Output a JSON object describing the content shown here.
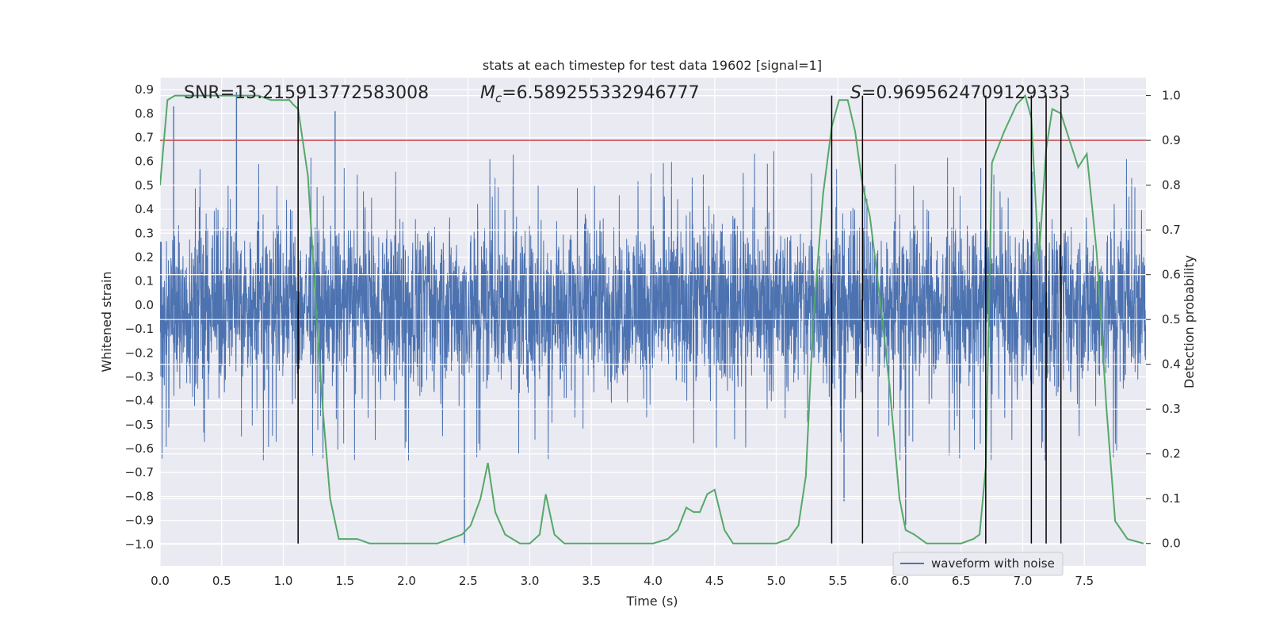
{
  "chart_data": {
    "type": "line",
    "title": "stats at each timestep for test data 19602 [signal=1]",
    "xlabel": "Time (s)",
    "ylabel_left": "Whitened strain",
    "ylabel_right": "Detection probability",
    "xlim": [
      0,
      8
    ],
    "ylim_left": [
      -1.09,
      0.95
    ],
    "ylim_right": [
      -0.05,
      1.04
    ],
    "xticks": [
      "0.0",
      "0.5",
      "1.0",
      "1.5",
      "2.0",
      "2.5",
      "3.0",
      "3.5",
      "4.0",
      "4.5",
      "5.0",
      "5.5",
      "6.0",
      "6.5",
      "7.0",
      "7.5"
    ],
    "xtick_values": [
      0,
      0.5,
      1,
      1.5,
      2,
      2.5,
      3,
      3.5,
      4,
      4.5,
      5,
      5.5,
      6,
      6.5,
      7,
      7.5
    ],
    "yticks_left": [
      "0.9",
      "0.8",
      "0.7",
      "0.6",
      "0.5",
      "0.4",
      "0.3",
      "0.2",
      "0.1",
      "0.0",
      "−0.1",
      "−0.2",
      "−0.3",
      "−0.4",
      "−0.5",
      "−0.6",
      "−0.7",
      "−0.8",
      "−0.9",
      "−1.0"
    ],
    "ytick_values_left": [
      0.9,
      0.8,
      0.7,
      0.6,
      0.5,
      0.4,
      0.3,
      0.2,
      0.1,
      0,
      -0.1,
      -0.2,
      -0.3,
      -0.4,
      -0.5,
      -0.6,
      -0.7,
      -0.8,
      -0.9,
      -1.0
    ],
    "yticks_right": [
      "1.0",
      "0.9",
      "0.8",
      "0.7",
      "0.6",
      "0.5",
      "0.4",
      "0.3",
      "0.2",
      "0.1",
      "0.0"
    ],
    "ytick_values_right": [
      1,
      0.9,
      0.8,
      0.7,
      0.6,
      0.5,
      0.4,
      0.3,
      0.2,
      0.1,
      0
    ],
    "annotations": {
      "snr": "SNR=13.215913772583008",
      "mc_symbol": "M",
      "mc_sub": "c",
      "mc_value": "=6.589255332946777",
      "s_symbol": "S",
      "s_value": "=0.9695624709129333"
    },
    "threshold": {
      "value": 0.9,
      "axis": "right",
      "color": "#c44e52"
    },
    "detection_vlines": [
      1.12,
      5.45,
      5.7,
      6.7,
      7.07,
      7.19,
      7.31
    ],
    "legend": {
      "label": "waveform with noise",
      "location": "lower right"
    },
    "series": [
      {
        "name": "waveform with noise",
        "axis": "left",
        "color": "#4c72b0",
        "note": "noisy whitened strain, approx. bulk range -0.45 to 0.45 with spikes",
        "peaks": [
          {
            "x": 0.62,
            "y": 0.89
          },
          {
            "x": 0.11,
            "y": 0.83
          },
          {
            "x": 1.42,
            "y": 0.81
          },
          {
            "x": 2.47,
            "y": -1.0
          },
          {
            "x": 5.55,
            "y": -0.82
          },
          {
            "x": 6.05,
            "y": -0.92
          }
        ]
      },
      {
        "name": "detection probability",
        "axis": "right",
        "color": "#55a868",
        "x": [
          0.0,
          0.06,
          0.12,
          0.2,
          0.3,
          0.4,
          0.5,
          0.6,
          0.7,
          0.8,
          0.9,
          0.95,
          1.0,
          1.05,
          1.08,
          1.12,
          1.2,
          1.26,
          1.32,
          1.38,
          1.45,
          1.52,
          1.6,
          1.7,
          1.8,
          1.95,
          2.1,
          2.25,
          2.35,
          2.45,
          2.52,
          2.6,
          2.66,
          2.72,
          2.8,
          2.92,
          3.0,
          3.08,
          3.13,
          3.2,
          3.28,
          3.4,
          3.55,
          3.7,
          3.85,
          4.0,
          4.12,
          4.2,
          4.27,
          4.33,
          4.38,
          4.44,
          4.5,
          4.58,
          4.65,
          4.8,
          5.0,
          5.1,
          5.18,
          5.24,
          5.3,
          5.38,
          5.45,
          5.51,
          5.58,
          5.64,
          5.7,
          5.76,
          5.84,
          5.92,
          6.0,
          6.05,
          6.12,
          6.22,
          6.35,
          6.5,
          6.6,
          6.65,
          6.7,
          6.75,
          6.85,
          6.95,
          7.02,
          7.07,
          7.13,
          7.19,
          7.24,
          7.31,
          7.38,
          7.45,
          7.52,
          7.6,
          7.68,
          7.75,
          7.85,
          7.98
        ],
        "y": [
          0.8,
          0.99,
          1.0,
          1.0,
          1.0,
          1.0,
          1.0,
          1.0,
          1.0,
          1.0,
          0.99,
          0.99,
          0.99,
          0.99,
          0.98,
          0.97,
          0.82,
          0.55,
          0.3,
          0.1,
          0.01,
          0.01,
          0.01,
          0.0,
          0.0,
          0.0,
          0.0,
          0.0,
          0.01,
          0.02,
          0.04,
          0.1,
          0.18,
          0.07,
          0.02,
          0.0,
          0.0,
          0.02,
          0.11,
          0.02,
          0.0,
          0.0,
          0.0,
          0.0,
          0.0,
          0.0,
          0.01,
          0.03,
          0.08,
          0.07,
          0.07,
          0.11,
          0.12,
          0.03,
          0.0,
          0.0,
          0.0,
          0.01,
          0.04,
          0.15,
          0.5,
          0.78,
          0.93,
          0.99,
          0.99,
          0.92,
          0.8,
          0.73,
          0.55,
          0.35,
          0.1,
          0.03,
          0.02,
          0.0,
          0.0,
          0.0,
          0.01,
          0.02,
          0.17,
          0.85,
          0.92,
          0.98,
          1.0,
          0.95,
          0.63,
          0.88,
          0.97,
          0.96,
          0.9,
          0.84,
          0.87,
          0.65,
          0.3,
          0.05,
          0.01,
          0.0
        ]
      }
    ]
  }
}
